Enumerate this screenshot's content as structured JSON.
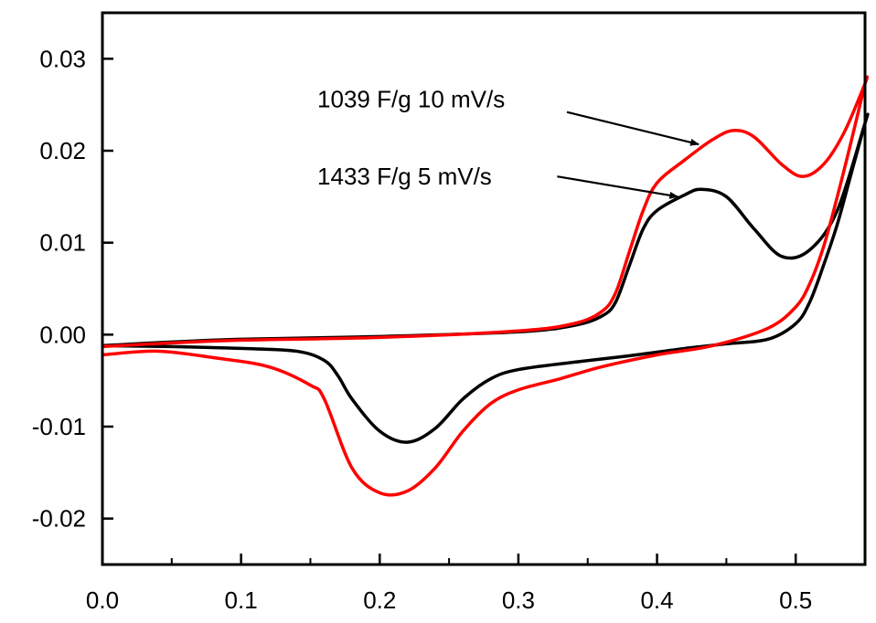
{
  "chart_data": {
    "type": "line",
    "title": "",
    "xlabel": "",
    "ylabel": "",
    "xlim": [
      0.0,
      0.55
    ],
    "ylim": [
      -0.025,
      0.035
    ],
    "grid": false,
    "x_ticks": [
      0.0,
      0.1,
      0.2,
      0.3,
      0.4,
      0.5
    ],
    "x_tick_labels": [
      "0.0",
      "0.1",
      "0.2",
      "0.3",
      "0.4",
      "0.5"
    ],
    "y_ticks": [
      -0.02,
      -0.01,
      0.0,
      0.01,
      0.02,
      0.03
    ],
    "y_tick_labels": [
      "-0.02",
      "-0.01",
      "0.00",
      "0.01",
      "0.02",
      "0.03"
    ],
    "series": [
      {
        "color": "#000000",
        "x": [
          0.0,
          0.05,
          0.1,
          0.2,
          0.3,
          0.34,
          0.36,
          0.37,
          0.38,
          0.39,
          0.4,
          0.42,
          0.432,
          0.45,
          0.47,
          0.49,
          0.51,
          0.53,
          0.55,
          0.55,
          0.54,
          0.53,
          0.52,
          0.51,
          0.5,
          0.48,
          0.45,
          0.42,
          0.38,
          0.34,
          0.3,
          0.28,
          0.26,
          0.24,
          0.22,
          0.2,
          0.18,
          0.17,
          0.16,
          0.14,
          0.1,
          0.05,
          0.0
        ],
        "y": [
          -0.0012,
          -0.0008,
          -0.0005,
          -0.0002,
          0.0003,
          0.001,
          0.002,
          0.0035,
          0.0075,
          0.0115,
          0.0135,
          0.0152,
          0.0158,
          0.015,
          0.0115,
          0.0085,
          0.0092,
          0.0135,
          0.023,
          0.023,
          0.0175,
          0.012,
          0.0075,
          0.0035,
          0.0012,
          -0.0005,
          -0.001,
          -0.0015,
          -0.0023,
          -0.003,
          -0.0038,
          -0.0048,
          -0.007,
          -0.0102,
          -0.0117,
          -0.0105,
          -0.007,
          -0.0045,
          -0.0028,
          -0.0018,
          -0.0015,
          -0.0013,
          -0.0012
        ]
      },
      {
        "color": "#ff0000",
        "x": [
          0.0,
          0.05,
          0.1,
          0.2,
          0.3,
          0.34,
          0.36,
          0.37,
          0.38,
          0.39,
          0.4,
          0.42,
          0.44,
          0.455,
          0.47,
          0.49,
          0.505,
          0.52,
          0.535,
          0.55,
          0.55,
          0.54,
          0.53,
          0.52,
          0.51,
          0.5,
          0.48,
          0.44,
          0.4,
          0.36,
          0.33,
          0.3,
          0.28,
          0.26,
          0.24,
          0.22,
          0.2,
          0.18,
          0.16,
          0.15,
          0.12,
          0.08,
          0.04,
          0.0
        ],
        "y": [
          -0.0013,
          -0.0009,
          -0.0006,
          -0.0003,
          0.0004,
          0.0012,
          0.0025,
          0.0045,
          0.009,
          0.0135,
          0.0165,
          0.019,
          0.0212,
          0.0222,
          0.0215,
          0.0185,
          0.0172,
          0.0185,
          0.022,
          0.0273,
          0.0273,
          0.021,
          0.015,
          0.0095,
          0.0055,
          0.003,
          0.0007,
          -0.0012,
          -0.0022,
          -0.0035,
          -0.0048,
          -0.006,
          -0.0075,
          -0.0105,
          -0.0145,
          -0.017,
          -0.0172,
          -0.0145,
          -0.007,
          -0.0055,
          -0.0035,
          -0.0025,
          -0.0018,
          -0.0022
        ]
      }
    ],
    "annotations": [
      {
        "text": "1039 F/g 10 mV/s",
        "text_x": 0.155,
        "text_y": 0.0247,
        "arrow_from": [
          0.335,
          0.0242
        ],
        "arrow_to": [
          0.43,
          0.0207
        ]
      },
      {
        "text": "1433 F/g  5 mV/s",
        "text_x": 0.155,
        "text_y": 0.0163,
        "arrow_from": [
          0.328,
          0.0172
        ],
        "arrow_to": [
          0.415,
          0.015
        ]
      }
    ]
  }
}
